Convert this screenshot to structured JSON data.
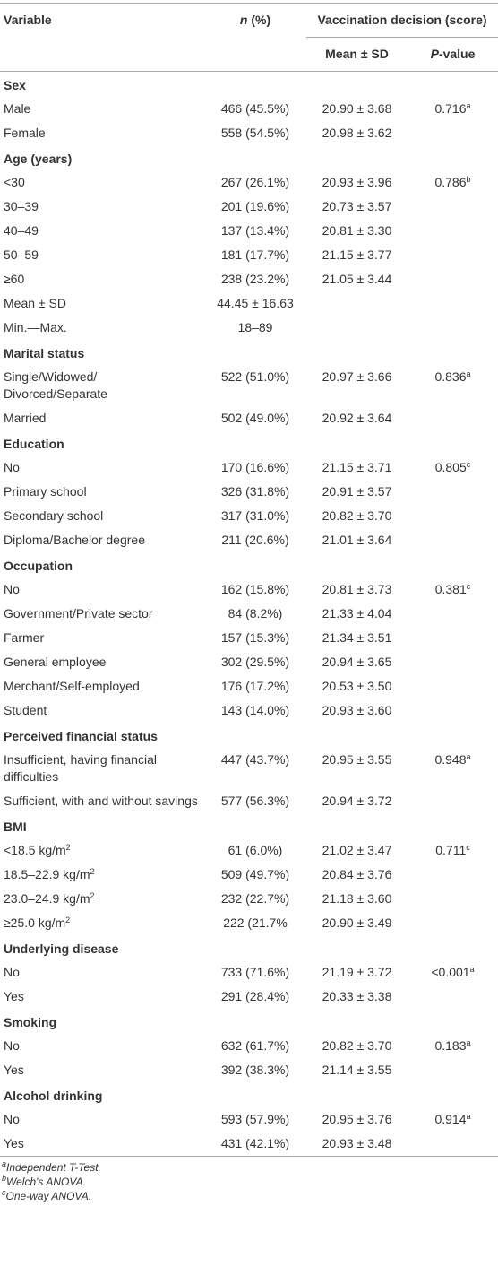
{
  "header": {
    "variable": "Variable",
    "n_italic": "n",
    "n_rest": " (%)",
    "group": "Vaccination decision (score)",
    "mean": "Mean ± SD",
    "p_italic": "P",
    "p_rest": "-value"
  },
  "rows": [
    {
      "section": "Sex"
    },
    {
      "label": "Male",
      "n": "466 (45.5%)",
      "mean": "20.90 ± 3.68",
      "p": "0.716",
      "p_note": "a"
    },
    {
      "label": "Female",
      "n": "558 (54.5%)",
      "mean": "20.98 ± 3.62"
    },
    {
      "section": "Age (years)"
    },
    {
      "label": "<30",
      "n": "267 (26.1%)",
      "mean": "20.93 ± 3.96",
      "p": "0.786",
      "p_note": "b"
    },
    {
      "label": "30–39",
      "n": "201 (19.6%)",
      "mean": "20.73 ± 3.57"
    },
    {
      "label": "40–49",
      "n": "137 (13.4%)",
      "mean": "20.81 ± 3.30"
    },
    {
      "label": "50–59",
      "n": "181 (17.7%)",
      "mean": "21.15 ± 3.77"
    },
    {
      "label": "≥60",
      "n": "238 (23.2%)",
      "mean": "21.05 ± 3.44"
    },
    {
      "label": "Mean ± SD",
      "n": "44.45 ± 16.63"
    },
    {
      "label": "Min.—Max.",
      "n": "18–89"
    },
    {
      "section": "Marital status"
    },
    {
      "label": "Single/Widowed/ Divorced/Separate",
      "n": "522 (51.0%)",
      "mean": "20.97 ± 3.66",
      "p": "0.836",
      "p_note": "a"
    },
    {
      "label": "Married",
      "n": "502 (49.0%)",
      "mean": "20.92 ± 3.64"
    },
    {
      "section": "Education"
    },
    {
      "label": "No",
      "n": "170 (16.6%)",
      "mean": "21.15 ± 3.71",
      "p": "0.805",
      "p_note": "c"
    },
    {
      "label": "Primary school",
      "n": "326 (31.8%)",
      "mean": "20.91 ± 3.57"
    },
    {
      "label": "Secondary school",
      "n": "317 (31.0%)",
      "mean": "20.82 ± 3.70"
    },
    {
      "label": "Diploma/Bachelor degree",
      "n": "211 (20.6%)",
      "mean": "21.01 ± 3.64"
    },
    {
      "section": "Occupation"
    },
    {
      "label": "No",
      "n": "162 (15.8%)",
      "mean": "20.81 ± 3.73",
      "p": "0.381",
      "p_note": "c"
    },
    {
      "label": "Government/Private sector",
      "n": "84 (8.2%)",
      "mean": "21.33 ± 4.04"
    },
    {
      "label": "Farmer",
      "n": "157 (15.3%)",
      "mean": "21.34 ± 3.51"
    },
    {
      "label": "General employee",
      "n": "302 (29.5%)",
      "mean": "20.94 ± 3.65"
    },
    {
      "label": "Merchant/Self-employed",
      "n": "176 (17.2%)",
      "mean": "20.53 ± 3.50"
    },
    {
      "label": "Student",
      "n": "143 (14.0%)",
      "mean": "20.93 ± 3.60"
    },
    {
      "section": "Perceived financial status"
    },
    {
      "label": "Insufficient, having financial difficulties",
      "n": "447 (43.7%)",
      "mean": "20.95 ± 3.55",
      "p": "0.948",
      "p_note": "a"
    },
    {
      "label": "Sufficient, with and without savings",
      "n": "577 (56.3%)",
      "mean": "20.94 ± 3.72"
    },
    {
      "section": "BMI"
    },
    {
      "label": "<18.5 kg/m",
      "label_sup": "2",
      "n": "61 (6.0%)",
      "mean": "21.02 ± 3.47",
      "p": "0.711",
      "p_note": "c"
    },
    {
      "label": "18.5–22.9 kg/m",
      "label_sup": "2",
      "n": "509 (49.7%)",
      "mean": "20.84 ± 3.76"
    },
    {
      "label": "23.0–24.9 kg/m",
      "label_sup": "2",
      "n": "232 (22.7%)",
      "mean": "21.18 ± 3.60"
    },
    {
      "label": "≥25.0 kg/m",
      "label_sup": "2",
      "n": "222 (21.7%",
      "mean": "20.90 ± 3.49"
    },
    {
      "section": "Underlying disease"
    },
    {
      "label": "No",
      "n": "733 (71.6%)",
      "mean": "21.19 ± 3.72",
      "p": "<0.001",
      "p_note": "a"
    },
    {
      "label": "Yes",
      "n": "291 (28.4%)",
      "mean": "20.33 ± 3.38"
    },
    {
      "section": "Smoking"
    },
    {
      "label": "No",
      "n": "632 (61.7%)",
      "mean": "20.82 ± 3.70",
      "p": "0.183",
      "p_note": "a"
    },
    {
      "label": "Yes",
      "n": "392 (38.3%)",
      "mean": "21.14 ± 3.55"
    },
    {
      "section": "Alcohol drinking"
    },
    {
      "label": "No",
      "n": "593 (57.9%)",
      "mean": "20.95 ± 3.76",
      "p": "0.914",
      "p_note": "a"
    },
    {
      "label": "Yes",
      "n": "431 (42.1%)",
      "mean": "20.93 ± 3.48"
    }
  ],
  "footnotes": [
    {
      "mark": "a",
      "text": "Independent T-Test."
    },
    {
      "mark": "b",
      "text": "Welch's ANOVA."
    },
    {
      "mark": "c",
      "text": "One-way ANOVA."
    }
  ]
}
